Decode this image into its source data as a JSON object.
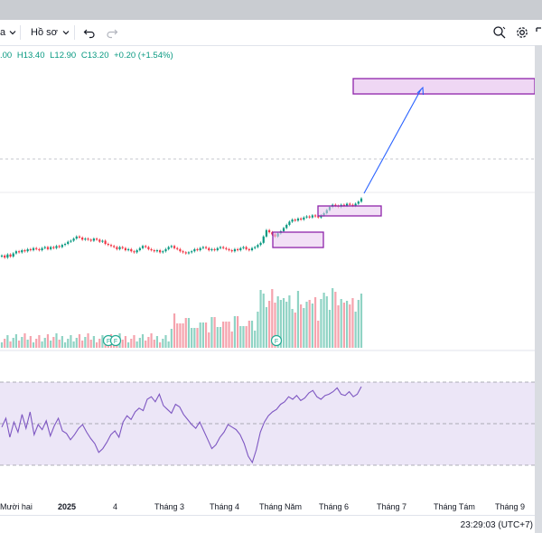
{
  "toolbar": {
    "interval_fragment": "a",
    "profile_label": "Hồ sơ",
    "profile_chevron": "chevron-down-icon",
    "undo_icon": "undo-icon",
    "redo_icon": "redo-icon",
    "right_icons": [
      "search-icon",
      "gear-icon",
      "fullscreen-icon"
    ]
  },
  "ohlc": {
    "open_fragment": ".00",
    "high": "H13.40",
    "low": "L12.90",
    "close": "C13.20",
    "change": "+0.20 (+1.54%)",
    "color": "#089981"
  },
  "time_axis": {
    "labels": [
      "Mười hai",
      "2025",
      "4",
      "Tháng 3",
      "Tháng 4",
      "Tháng Năm",
      "Tháng 6",
      "Tháng 7",
      "Tháng Tám",
      "Tháng 9"
    ]
  },
  "clock": "23:29:03 (UTC+7)",
  "event_markers": [
    "F",
    "F",
    "F"
  ],
  "colors": {
    "up": "#089981",
    "down": "#f23645",
    "volume_up": "#8fd3c4",
    "volume_down": "#f5a3ad",
    "rsi_line": "#7e57c2",
    "rsi_band": "#ece6f7",
    "zone_fill": "#e8c6ef",
    "zone_border": "#8e24aa",
    "arrow": "#2962ff"
  },
  "chart_data": {
    "type": "candlestick",
    "annotations": [
      "consolidation-zone-1",
      "consolidation-zone-2",
      "target-zone",
      "projection-arrow"
    ],
    "price_series_shape": [
      0.42,
      0.4,
      0.43,
      0.41,
      0.44,
      0.46,
      0.45,
      0.47,
      0.46,
      0.48,
      0.47,
      0.49,
      0.48,
      0.47,
      0.49,
      0.5,
      0.48,
      0.5,
      0.49,
      0.51,
      0.5,
      0.52,
      0.53,
      0.55,
      0.56,
      0.58,
      0.6,
      0.59,
      0.57,
      0.58,
      0.57,
      0.56,
      0.58,
      0.57,
      0.55,
      0.56,
      0.53,
      0.52,
      0.51,
      0.5,
      0.48,
      0.5,
      0.49,
      0.47,
      0.48,
      0.46,
      0.45,
      0.47,
      0.49,
      0.51,
      0.5,
      0.48,
      0.47,
      0.46,
      0.47,
      0.45,
      0.46,
      0.48,
      0.5,
      0.51,
      0.49,
      0.48,
      0.46,
      0.45,
      0.44,
      0.45,
      0.46,
      0.48,
      0.47,
      0.49,
      0.5,
      0.49,
      0.47,
      0.48,
      0.47,
      0.49,
      0.5,
      0.49,
      0.48,
      0.47,
      0.46,
      0.48,
      0.47,
      0.49,
      0.5,
      0.48,
      0.47,
      0.49,
      0.5,
      0.52,
      0.54,
      0.6,
      0.66,
      0.64,
      0.62,
      0.6,
      0.63,
      0.65,
      0.68,
      0.71,
      0.74,
      0.76,
      0.75,
      0.77,
      0.76,
      0.78,
      0.79,
      0.78,
      0.8,
      0.79,
      0.78,
      0.8,
      0.82,
      0.85,
      0.88,
      0.9,
      0.89,
      0.88,
      0.9,
      0.89,
      0.91,
      0.9,
      0.89,
      0.91,
      0.93,
      0.96
    ],
    "rsi_series_shape": [
      48,
      55,
      40,
      52,
      44,
      58,
      47,
      60,
      42,
      50,
      46,
      53,
      41,
      49,
      55,
      45,
      43,
      38,
      42,
      47,
      50,
      44,
      39,
      35,
      28,
      31,
      36,
      42,
      45,
      40,
      52,
      57,
      54,
      60,
      63,
      61,
      70,
      72,
      68,
      74,
      65,
      62,
      59,
      66,
      64,
      58,
      54,
      50,
      47,
      52,
      45,
      38,
      31,
      34,
      40,
      44,
      50,
      48,
      46,
      42,
      35,
      25,
      20,
      30,
      44,
      52,
      57,
      60,
      62,
      66,
      68,
      72,
      70,
      73,
      69,
      71,
      75,
      77,
      72,
      70,
      73,
      74,
      76,
      79,
      74,
      73,
      76,
      72,
      74,
      80
    ]
  }
}
